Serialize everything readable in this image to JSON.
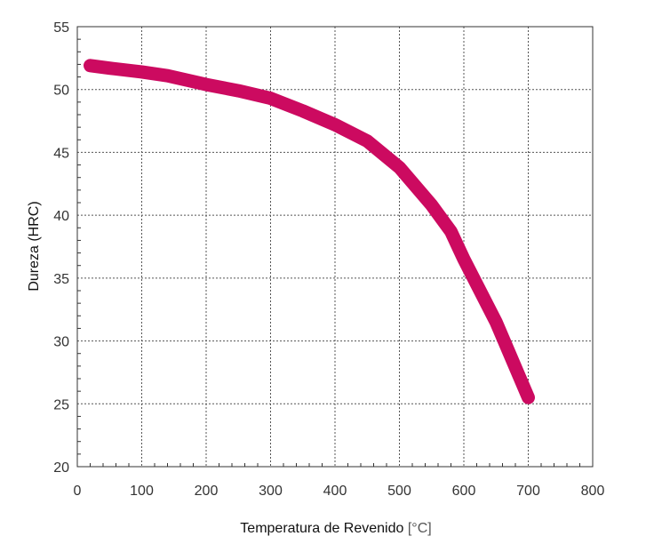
{
  "chart_data": {
    "type": "line",
    "title": "",
    "xlabel": "Temperatura de Revenido",
    "xunit": "[°C]",
    "ylabel": "Dureza (HRC)",
    "xlim": [
      0,
      800
    ],
    "ylim": [
      20,
      55
    ],
    "x_ticks": [
      0,
      100,
      200,
      300,
      400,
      500,
      600,
      700,
      800
    ],
    "y_ticks": [
      20,
      25,
      30,
      35,
      40,
      45,
      50,
      55
    ],
    "x_tick_labels": [
      "0",
      "100",
      "200",
      "300",
      "400",
      "500",
      "600",
      "700",
      "800"
    ],
    "y_tick_labels": [
      "20",
      "25",
      "30",
      "35",
      "40",
      "45",
      "50",
      "55"
    ],
    "grid": true,
    "grid_style": "dotted",
    "series": [
      {
        "color": "#cc0a60",
        "x": [
          20,
          50,
          100,
          140,
          200,
          250,
          300,
          350,
          400,
          450,
          500,
          550,
          580,
          600,
          650,
          700
        ],
        "y": [
          51.9,
          51.7,
          51.4,
          51.1,
          50.4,
          49.9,
          49.3,
          48.3,
          47.2,
          45.9,
          43.8,
          40.8,
          38.7,
          36.5,
          31.5,
          25.5
        ]
      }
    ]
  }
}
